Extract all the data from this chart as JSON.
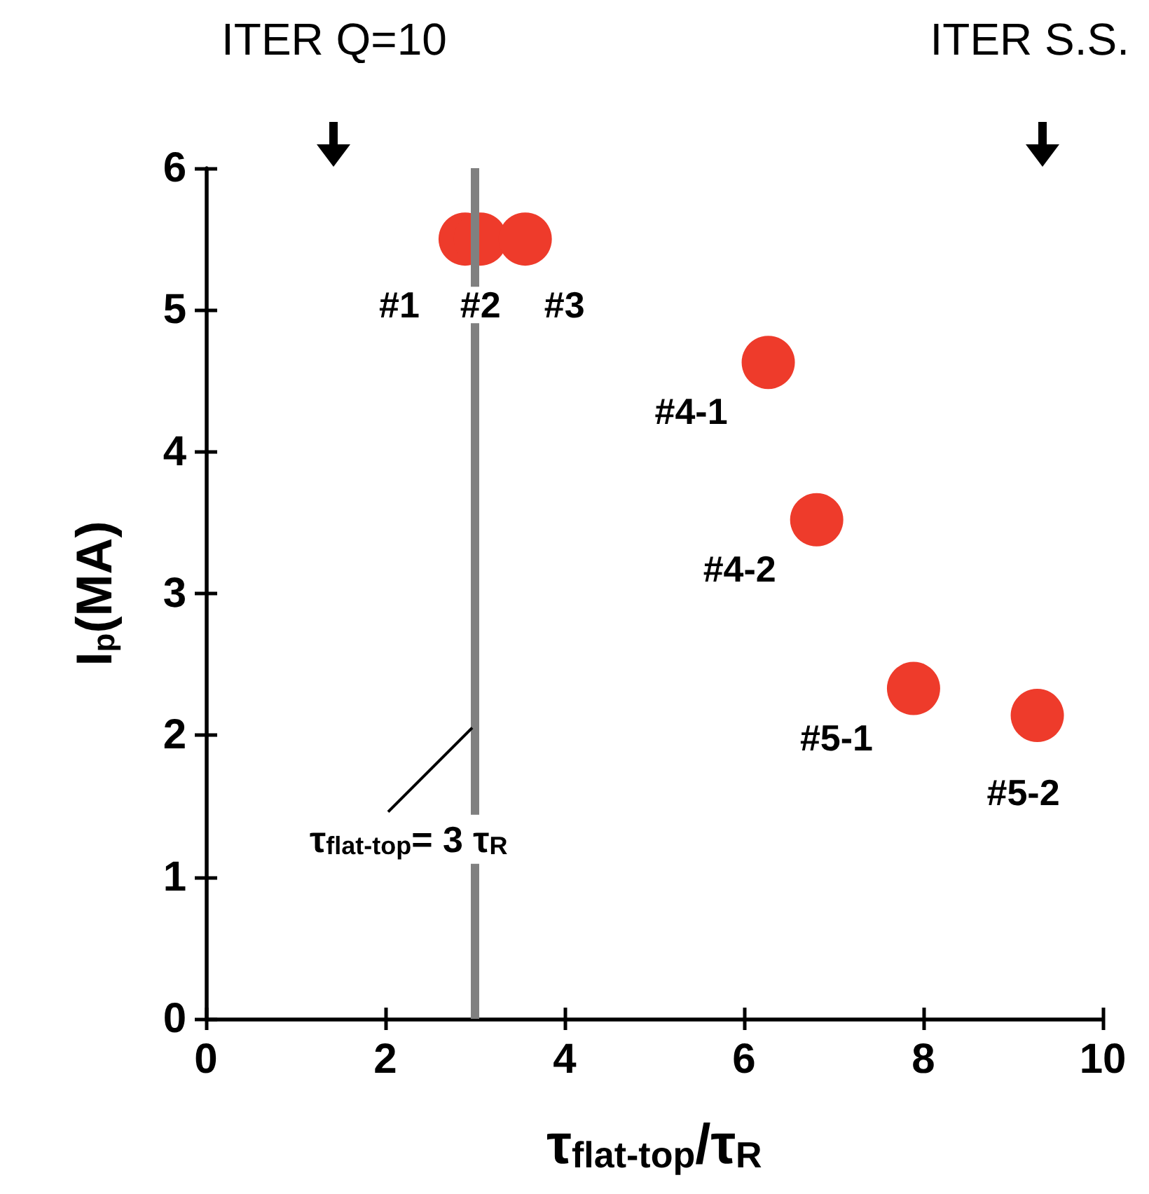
{
  "chart_data": {
    "type": "scatter",
    "xlabel": "τ$_{flat-top}$/τ$_{R}$",
    "ylabel": "I$_{p}$(MA)",
    "x": [
      2.89,
      3.06,
      3.56,
      6.27,
      6.81,
      7.89,
      9.27
    ],
    "values": [
      5.5,
      5.5,
      5.5,
      4.63,
      3.52,
      2.33,
      2.14
    ],
    "color": "#ee3b2b",
    "marker": "circle",
    "grid": false,
    "xlim": [
      0,
      10
    ],
    "xticks": [
      0,
      2,
      4,
      6,
      8,
      10
    ],
    "ylim": [
      0,
      6
    ],
    "yticks": [
      0,
      1,
      2,
      3,
      4,
      5,
      6
    ],
    "ref_lines": [
      {
        "axis": "x",
        "value": 3,
        "label": "τ$_{flat-top}$= 3 τ$_{R}$",
        "color": "#808080"
      }
    ],
    "annotations": [
      "ITER Q=10",
      "ITER S.S.",
      {
        "text": "#1",
        "x": 2.89,
        "y": 5.5
      },
      {
        "text": "#2",
        "x": 3.06,
        "y": 5.5
      },
      {
        "text": "#3",
        "x": 3.56,
        "y": 5.5
      },
      {
        "text": "#4-1",
        "x": 6.27,
        "y": 4.63
      },
      {
        "text": "#4-2",
        "x": 6.81,
        "y": 3.52
      },
      {
        "text": "#5-1",
        "x": 7.89,
        "y": 2.33
      },
      {
        "text": "#5-2",
        "x": 9.27,
        "y": 2.14
      }
    ]
  }
}
